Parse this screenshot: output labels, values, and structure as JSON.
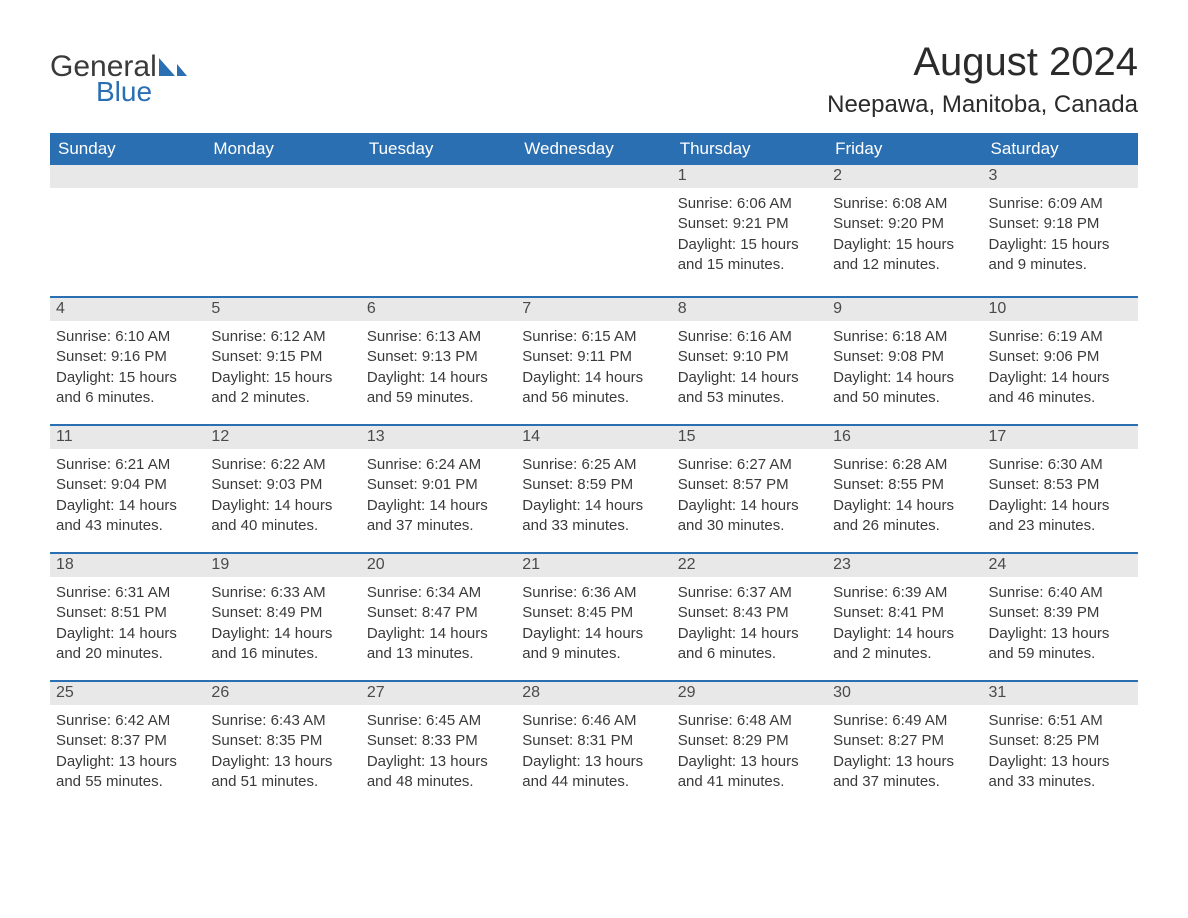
{
  "brand": {
    "part1": "General",
    "part2": "Blue"
  },
  "title": "August 2024",
  "location": "Neepawa, Manitoba, Canada",
  "colors": {
    "header_bg": "#2b6fb3",
    "header_text": "#ffffff",
    "daynum_bg": "#e8e8e8",
    "row_divider": "#2b6fb3",
    "body_text": "#3a3a3a",
    "page_bg": "#ffffff",
    "logo_accent": "#2b6fb3"
  },
  "weekdays": [
    "Sunday",
    "Monday",
    "Tuesday",
    "Wednesday",
    "Thursday",
    "Friday",
    "Saturday"
  ],
  "weeks": [
    [
      {
        "day": "",
        "sunrise": "",
        "sunset": "",
        "daylight": ""
      },
      {
        "day": "",
        "sunrise": "",
        "sunset": "",
        "daylight": ""
      },
      {
        "day": "",
        "sunrise": "",
        "sunset": "",
        "daylight": ""
      },
      {
        "day": "",
        "sunrise": "",
        "sunset": "",
        "daylight": ""
      },
      {
        "day": "1",
        "sunrise": "Sunrise: 6:06 AM",
        "sunset": "Sunset: 9:21 PM",
        "daylight": "Daylight: 15 hours and 15 minutes."
      },
      {
        "day": "2",
        "sunrise": "Sunrise: 6:08 AM",
        "sunset": "Sunset: 9:20 PM",
        "daylight": "Daylight: 15 hours and 12 minutes."
      },
      {
        "day": "3",
        "sunrise": "Sunrise: 6:09 AM",
        "sunset": "Sunset: 9:18 PM",
        "daylight": "Daylight: 15 hours and 9 minutes."
      }
    ],
    [
      {
        "day": "4",
        "sunrise": "Sunrise: 6:10 AM",
        "sunset": "Sunset: 9:16 PM",
        "daylight": "Daylight: 15 hours and 6 minutes."
      },
      {
        "day": "5",
        "sunrise": "Sunrise: 6:12 AM",
        "sunset": "Sunset: 9:15 PM",
        "daylight": "Daylight: 15 hours and 2 minutes."
      },
      {
        "day": "6",
        "sunrise": "Sunrise: 6:13 AM",
        "sunset": "Sunset: 9:13 PM",
        "daylight": "Daylight: 14 hours and 59 minutes."
      },
      {
        "day": "7",
        "sunrise": "Sunrise: 6:15 AM",
        "sunset": "Sunset: 9:11 PM",
        "daylight": "Daylight: 14 hours and 56 minutes."
      },
      {
        "day": "8",
        "sunrise": "Sunrise: 6:16 AM",
        "sunset": "Sunset: 9:10 PM",
        "daylight": "Daylight: 14 hours and 53 minutes."
      },
      {
        "day": "9",
        "sunrise": "Sunrise: 6:18 AM",
        "sunset": "Sunset: 9:08 PM",
        "daylight": "Daylight: 14 hours and 50 minutes."
      },
      {
        "day": "10",
        "sunrise": "Sunrise: 6:19 AM",
        "sunset": "Sunset: 9:06 PM",
        "daylight": "Daylight: 14 hours and 46 minutes."
      }
    ],
    [
      {
        "day": "11",
        "sunrise": "Sunrise: 6:21 AM",
        "sunset": "Sunset: 9:04 PM",
        "daylight": "Daylight: 14 hours and 43 minutes."
      },
      {
        "day": "12",
        "sunrise": "Sunrise: 6:22 AM",
        "sunset": "Sunset: 9:03 PM",
        "daylight": "Daylight: 14 hours and 40 minutes."
      },
      {
        "day": "13",
        "sunrise": "Sunrise: 6:24 AM",
        "sunset": "Sunset: 9:01 PM",
        "daylight": "Daylight: 14 hours and 37 minutes."
      },
      {
        "day": "14",
        "sunrise": "Sunrise: 6:25 AM",
        "sunset": "Sunset: 8:59 PM",
        "daylight": "Daylight: 14 hours and 33 minutes."
      },
      {
        "day": "15",
        "sunrise": "Sunrise: 6:27 AM",
        "sunset": "Sunset: 8:57 PM",
        "daylight": "Daylight: 14 hours and 30 minutes."
      },
      {
        "day": "16",
        "sunrise": "Sunrise: 6:28 AM",
        "sunset": "Sunset: 8:55 PM",
        "daylight": "Daylight: 14 hours and 26 minutes."
      },
      {
        "day": "17",
        "sunrise": "Sunrise: 6:30 AM",
        "sunset": "Sunset: 8:53 PM",
        "daylight": "Daylight: 14 hours and 23 minutes."
      }
    ],
    [
      {
        "day": "18",
        "sunrise": "Sunrise: 6:31 AM",
        "sunset": "Sunset: 8:51 PM",
        "daylight": "Daylight: 14 hours and 20 minutes."
      },
      {
        "day": "19",
        "sunrise": "Sunrise: 6:33 AM",
        "sunset": "Sunset: 8:49 PM",
        "daylight": "Daylight: 14 hours and 16 minutes."
      },
      {
        "day": "20",
        "sunrise": "Sunrise: 6:34 AM",
        "sunset": "Sunset: 8:47 PM",
        "daylight": "Daylight: 14 hours and 13 minutes."
      },
      {
        "day": "21",
        "sunrise": "Sunrise: 6:36 AM",
        "sunset": "Sunset: 8:45 PM",
        "daylight": "Daylight: 14 hours and 9 minutes."
      },
      {
        "day": "22",
        "sunrise": "Sunrise: 6:37 AM",
        "sunset": "Sunset: 8:43 PM",
        "daylight": "Daylight: 14 hours and 6 minutes."
      },
      {
        "day": "23",
        "sunrise": "Sunrise: 6:39 AM",
        "sunset": "Sunset: 8:41 PM",
        "daylight": "Daylight: 14 hours and 2 minutes."
      },
      {
        "day": "24",
        "sunrise": "Sunrise: 6:40 AM",
        "sunset": "Sunset: 8:39 PM",
        "daylight": "Daylight: 13 hours and 59 minutes."
      }
    ],
    [
      {
        "day": "25",
        "sunrise": "Sunrise: 6:42 AM",
        "sunset": "Sunset: 8:37 PM",
        "daylight": "Daylight: 13 hours and 55 minutes."
      },
      {
        "day": "26",
        "sunrise": "Sunrise: 6:43 AM",
        "sunset": "Sunset: 8:35 PM",
        "daylight": "Daylight: 13 hours and 51 minutes."
      },
      {
        "day": "27",
        "sunrise": "Sunrise: 6:45 AM",
        "sunset": "Sunset: 8:33 PM",
        "daylight": "Daylight: 13 hours and 48 minutes."
      },
      {
        "day": "28",
        "sunrise": "Sunrise: 6:46 AM",
        "sunset": "Sunset: 8:31 PM",
        "daylight": "Daylight: 13 hours and 44 minutes."
      },
      {
        "day": "29",
        "sunrise": "Sunrise: 6:48 AM",
        "sunset": "Sunset: 8:29 PM",
        "daylight": "Daylight: 13 hours and 41 minutes."
      },
      {
        "day": "30",
        "sunrise": "Sunrise: 6:49 AM",
        "sunset": "Sunset: 8:27 PM",
        "daylight": "Daylight: 13 hours and 37 minutes."
      },
      {
        "day": "31",
        "sunrise": "Sunrise: 6:51 AM",
        "sunset": "Sunset: 8:25 PM",
        "daylight": "Daylight: 13 hours and 33 minutes."
      }
    ]
  ]
}
